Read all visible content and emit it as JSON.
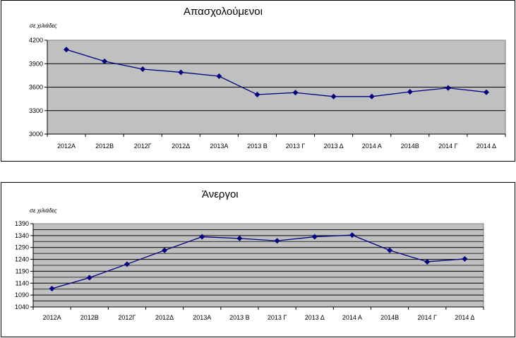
{
  "chart_data": [
    {
      "type": "line",
      "title": "Απασχολούμενοι",
      "ylabel": "σε χιλιάδες",
      "categories": [
        "2012A",
        "2012B",
        "2012Γ",
        "2012Δ",
        "2013A",
        "2013 B",
        "2013 Γ",
        "2013 Δ",
        "2014 A",
        "2014B",
        "2014 Γ",
        "2014 Δ"
      ],
      "values": [
        4080,
        3930,
        3830,
        3790,
        3740,
        3505,
        3530,
        3480,
        3480,
        3540,
        3590,
        3535
      ],
      "ylim": [
        3000,
        4200
      ],
      "yticks": [
        3000,
        3300,
        3600,
        3900,
        4200
      ],
      "yticklabels": [
        "3000",
        "3300",
        "3600",
        "3900",
        "4200"
      ],
      "grid": true,
      "color": "#000080",
      "plot_bg": "#c0c0c0"
    },
    {
      "type": "line",
      "title": "Άνεργοι",
      "ylabel": "σε χιλιάδες",
      "categories": [
        "2012A",
        "2012B",
        "2012Γ",
        "2012Δ",
        "2013A",
        "2013 B",
        "2013 Γ",
        "2013 Δ",
        "2014 A",
        "2014B",
        "2014 Γ",
        "2014 Δ"
      ],
      "values": [
        1117,
        1163,
        1220,
        1278,
        1335,
        1328,
        1318,
        1335,
        1342,
        1278,
        1230,
        1242
      ],
      "ylim": [
        1040,
        1390
      ],
      "yticks": [
        1040,
        1090,
        1140,
        1190,
        1240,
        1290,
        1340,
        1390
      ],
      "yticklabels": [
        "1040",
        "1090",
        "1140",
        "1190",
        "1240",
        "1290",
        "1340",
        "1390"
      ],
      "minor_grid_step": 25,
      "grid": true,
      "color": "#000080",
      "plot_bg": "#c0c0c0"
    }
  ]
}
